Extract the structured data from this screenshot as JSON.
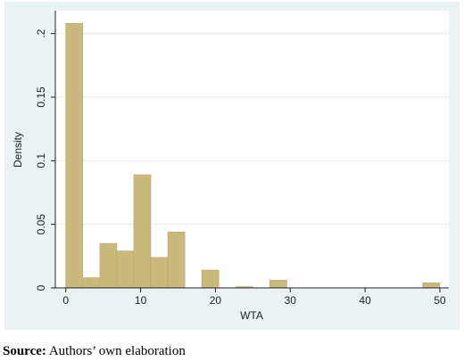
{
  "chart_data": {
    "type": "histogram",
    "x_label": "WTA",
    "y_label": "Density",
    "bins": [
      0,
      2.27,
      4.55,
      6.82,
      9.09,
      11.36,
      13.64,
      15.91,
      18.18,
      20.45,
      22.73,
      25,
      27.27,
      29.55,
      31.82,
      34.09,
      36.36,
      38.64,
      40.91,
      43.18,
      45.45,
      47.73,
      50
    ],
    "counts": [
      0.208,
      0.008,
      0.035,
      0.029,
      0.089,
      0.024,
      0.044,
      0,
      0.014,
      0,
      0.001,
      0,
      0.006,
      0,
      0,
      0,
      0,
      0,
      0,
      0,
      0,
      0.004
    ],
    "color": "#c9b97c",
    "xlim": [
      -1.4,
      51.2
    ],
    "xticks": [
      0,
      10,
      20,
      30,
      40,
      50
    ],
    "ylim": [
      0,
      0.218
    ],
    "yticks": [
      0,
      0.05,
      0.1,
      0.15,
      {
        "value": 0.2,
        "label": ".2"
      }
    ],
    "grid": true
  },
  "caption": {
    "label": "Source:",
    "text": "Authors’ own elaboration"
  }
}
